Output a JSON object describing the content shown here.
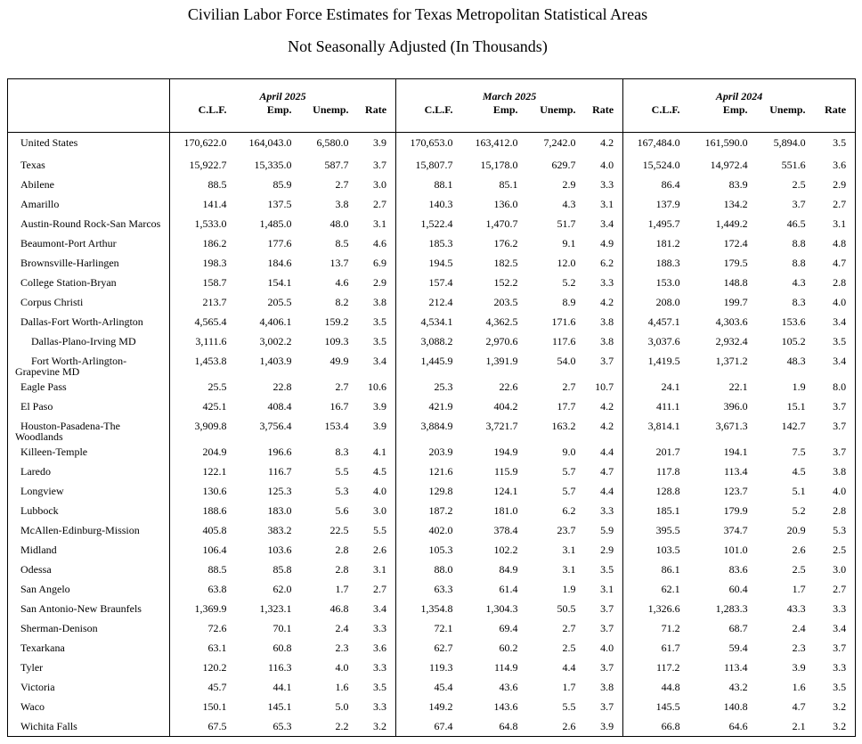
{
  "header": {
    "title": "Civilian Labor Force Estimates for Texas Metropolitan Statistical Areas",
    "subtitle": "Not Seasonally Adjusted (In Thousands)"
  },
  "table": {
    "groups": [
      {
        "label": "April 2025",
        "columns": [
          "C.L.F.",
          "Emp.",
          "Unemp.",
          "Rate"
        ]
      },
      {
        "label": "March 2025",
        "columns": [
          "C.L.F.",
          "Emp.",
          "Unemp.",
          "Rate"
        ]
      },
      {
        "label": "April 2024",
        "columns": [
          "C.L.F.",
          "Emp.",
          "Unemp.",
          "Rate"
        ]
      }
    ],
    "rows": [
      {
        "name": "United States",
        "values": [
          "170,622.0",
          "164,043.0",
          "6,580.0",
          "3.9",
          "170,653.0",
          "163,412.0",
          "7,242.0",
          "4.2",
          "167,484.0",
          "161,590.0",
          "5,894.0",
          "3.5"
        ]
      },
      {
        "name": "Texas",
        "values": [
          "15,922.7",
          "15,335.0",
          "587.7",
          "3.7",
          "15,807.7",
          "15,178.0",
          "629.7",
          "4.0",
          "15,524.0",
          "14,972.4",
          "551.6",
          "3.6"
        ]
      },
      {
        "name": "Abilene",
        "values": [
          "88.5",
          "85.9",
          "2.7",
          "3.0",
          "88.1",
          "85.1",
          "2.9",
          "3.3",
          "86.4",
          "83.9",
          "2.5",
          "2.9"
        ]
      },
      {
        "name": "Amarillo",
        "values": [
          "141.4",
          "137.5",
          "3.8",
          "2.7",
          "140.3",
          "136.0",
          "4.3",
          "3.1",
          "137.9",
          "134.2",
          "3.7",
          "2.7"
        ]
      },
      {
        "name": "Austin-Round Rock-San Marcos",
        "values": [
          "1,533.0",
          "1,485.0",
          "48.0",
          "3.1",
          "1,522.4",
          "1,470.7",
          "51.7",
          "3.4",
          "1,495.7",
          "1,449.2",
          "46.5",
          "3.1"
        ]
      },
      {
        "name": "Beaumont-Port Arthur",
        "values": [
          "186.2",
          "177.6",
          "8.5",
          "4.6",
          "185.3",
          "176.2",
          "9.1",
          "4.9",
          "181.2",
          "172.4",
          "8.8",
          "4.8"
        ]
      },
      {
        "name": "Brownsville-Harlingen",
        "values": [
          "198.3",
          "184.6",
          "13.7",
          "6.9",
          "194.5",
          "182.5",
          "12.0",
          "6.2",
          "188.3",
          "179.5",
          "8.8",
          "4.7"
        ]
      },
      {
        "name": "College Station-Bryan",
        "values": [
          "158.7",
          "154.1",
          "4.6",
          "2.9",
          "157.4",
          "152.2",
          "5.2",
          "3.3",
          "153.0",
          "148.8",
          "4.3",
          "2.8"
        ]
      },
      {
        "name": "Corpus Christi",
        "values": [
          "213.7",
          "205.5",
          "8.2",
          "3.8",
          "212.4",
          "203.5",
          "8.9",
          "4.2",
          "208.0",
          "199.7",
          "8.3",
          "4.0"
        ]
      },
      {
        "name": "Dallas-Fort Worth-Arlington",
        "values": [
          "4,565.4",
          "4,406.1",
          "159.2",
          "3.5",
          "4,534.1",
          "4,362.5",
          "171.6",
          "3.8",
          "4,457.1",
          "4,303.6",
          "153.6",
          "3.4"
        ]
      },
      {
        "name": "Dallas-Plano-Irving MD",
        "values": [
          "3,111.6",
          "3,002.2",
          "109.3",
          "3.5",
          "3,088.2",
          "2,970.6",
          "117.6",
          "3.8",
          "3,037.6",
          "2,932.4",
          "105.2",
          "3.5"
        ]
      },
      {
        "name": "Fort Worth-Arlington-Grapevine MD",
        "values": [
          "1,453.8",
          "1,403.9",
          "49.9",
          "3.4",
          "1,445.9",
          "1,391.9",
          "54.0",
          "3.7",
          "1,419.5",
          "1,371.2",
          "48.3",
          "3.4"
        ]
      },
      {
        "name": "Eagle Pass",
        "values": [
          "25.5",
          "22.8",
          "2.7",
          "10.6",
          "25.3",
          "22.6",
          "2.7",
          "10.7",
          "24.1",
          "22.1",
          "1.9",
          "8.0"
        ]
      },
      {
        "name": "El Paso",
        "values": [
          "425.1",
          "408.4",
          "16.7",
          "3.9",
          "421.9",
          "404.2",
          "17.7",
          "4.2",
          "411.1",
          "396.0",
          "15.1",
          "3.7"
        ]
      },
      {
        "name": "Houston-Pasadena-The Woodlands",
        "values": [
          "3,909.8",
          "3,756.4",
          "153.4",
          "3.9",
          "3,884.9",
          "3,721.7",
          "163.2",
          "4.2",
          "3,814.1",
          "3,671.3",
          "142.7",
          "3.7"
        ]
      },
      {
        "name": "Killeen-Temple",
        "values": [
          "204.9",
          "196.6",
          "8.3",
          "4.1",
          "203.9",
          "194.9",
          "9.0",
          "4.4",
          "201.7",
          "194.1",
          "7.5",
          "3.7"
        ]
      },
      {
        "name": "Laredo",
        "values": [
          "122.1",
          "116.7",
          "5.5",
          "4.5",
          "121.6",
          "115.9",
          "5.7",
          "4.7",
          "117.8",
          "113.4",
          "4.5",
          "3.8"
        ]
      },
      {
        "name": "Longview",
        "values": [
          "130.6",
          "125.3",
          "5.3",
          "4.0",
          "129.8",
          "124.1",
          "5.7",
          "4.4",
          "128.8",
          "123.7",
          "5.1",
          "4.0"
        ]
      },
      {
        "name": "Lubbock",
        "values": [
          "188.6",
          "183.0",
          "5.6",
          "3.0",
          "187.2",
          "181.0",
          "6.2",
          "3.3",
          "185.1",
          "179.9",
          "5.2",
          "2.8"
        ]
      },
      {
        "name": "McAllen-Edinburg-Mission",
        "values": [
          "405.8",
          "383.2",
          "22.5",
          "5.5",
          "402.0",
          "378.4",
          "23.7",
          "5.9",
          "395.5",
          "374.7",
          "20.9",
          "5.3"
        ]
      },
      {
        "name": "Midland",
        "values": [
          "106.4",
          "103.6",
          "2.8",
          "2.6",
          "105.3",
          "102.2",
          "3.1",
          "2.9",
          "103.5",
          "101.0",
          "2.6",
          "2.5"
        ]
      },
      {
        "name": "Odessa",
        "values": [
          "88.5",
          "85.8",
          "2.8",
          "3.1",
          "88.0",
          "84.9",
          "3.1",
          "3.5",
          "86.1",
          "83.6",
          "2.5",
          "3.0"
        ]
      },
      {
        "name": "San Angelo",
        "values": [
          "63.8",
          "62.0",
          "1.7",
          "2.7",
          "63.3",
          "61.4",
          "1.9",
          "3.1",
          "62.1",
          "60.4",
          "1.7",
          "2.7"
        ]
      },
      {
        "name": "San Antonio-New Braunfels",
        "values": [
          "1,369.9",
          "1,323.1",
          "46.8",
          "3.4",
          "1,354.8",
          "1,304.3",
          "50.5",
          "3.7",
          "1,326.6",
          "1,283.3",
          "43.3",
          "3.3"
        ]
      },
      {
        "name": "Sherman-Denison",
        "values": [
          "72.6",
          "70.1",
          "2.4",
          "3.3",
          "72.1",
          "69.4",
          "2.7",
          "3.7",
          "71.2",
          "68.7",
          "2.4",
          "3.4"
        ]
      },
      {
        "name": "Texarkana",
        "values": [
          "63.1",
          "60.8",
          "2.3",
          "3.6",
          "62.7",
          "60.2",
          "2.5",
          "4.0",
          "61.7",
          "59.4",
          "2.3",
          "3.7"
        ]
      },
      {
        "name": "Tyler",
        "values": [
          "120.2",
          "116.3",
          "4.0",
          "3.3",
          "119.3",
          "114.9",
          "4.4",
          "3.7",
          "117.2",
          "113.4",
          "3.9",
          "3.3"
        ]
      },
      {
        "name": "Victoria",
        "values": [
          "45.7",
          "44.1",
          "1.6",
          "3.5",
          "45.4",
          "43.6",
          "1.7",
          "3.8",
          "44.8",
          "43.2",
          "1.6",
          "3.5"
        ]
      },
      {
        "name": "Waco",
        "values": [
          "150.1",
          "145.1",
          "5.0",
          "3.3",
          "149.2",
          "143.6",
          "5.5",
          "3.7",
          "145.5",
          "140.8",
          "4.7",
          "3.2"
        ]
      },
      {
        "name": "Wichita Falls",
        "values": [
          "67.5",
          "65.3",
          "2.2",
          "3.2",
          "67.4",
          "64.8",
          "2.6",
          "3.9",
          "66.8",
          "64.6",
          "2.1",
          "3.2"
        ]
      }
    ]
  }
}
